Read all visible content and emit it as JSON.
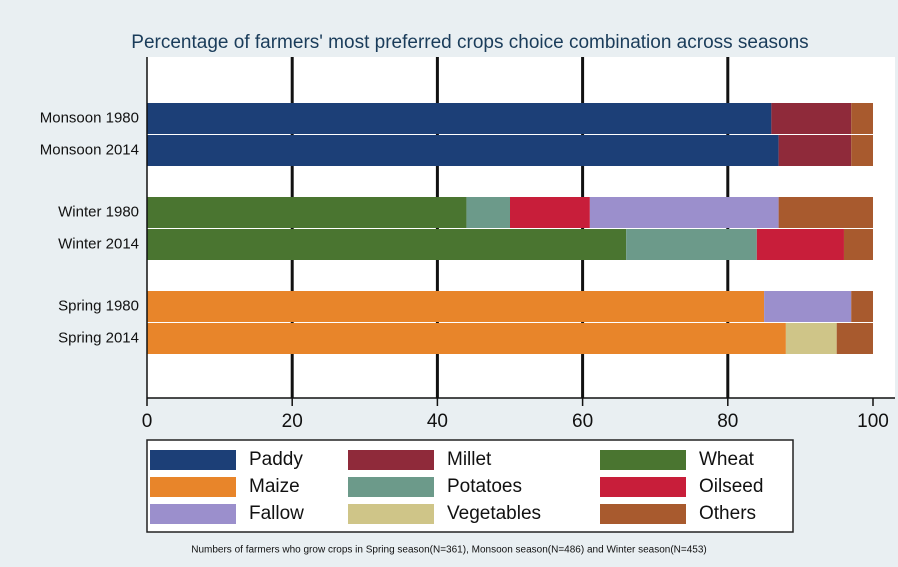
{
  "chart_data": {
    "type": "stacked-barh",
    "title": "Percentage of farmers' most preferred crops choice combination across seasons",
    "footnote": "Numbers of farmers who grow crops in Spring season(N=361), Monsoon season(N=486) and Winter season(N=453)",
    "categories": [
      "Monsoon 1980",
      "Monsoon 2014",
      "Winter  1980",
      "Winter  2014",
      "Spring 1980",
      "Spring 2014"
    ],
    "series": [
      {
        "name": "Paddy",
        "color": "#1c3f77",
        "values": [
          86,
          87,
          0,
          0,
          0,
          0
        ]
      },
      {
        "name": "Millet",
        "color": "#8f2a3a",
        "values": [
          11,
          10,
          0,
          0,
          0,
          0
        ]
      },
      {
        "name": "Wheat",
        "color": "#4a7530",
        "values": [
          0,
          0,
          44,
          66,
          0,
          0
        ]
      },
      {
        "name": "Maize",
        "color": "#e8852a",
        "values": [
          0,
          0,
          0,
          0,
          85,
          88
        ]
      },
      {
        "name": "Potatoes",
        "color": "#6c9a8a",
        "values": [
          0,
          0,
          6,
          18,
          0,
          0
        ]
      },
      {
        "name": "Oilseed",
        "color": "#c81e3a",
        "values": [
          0,
          0,
          11,
          12,
          0,
          0
        ]
      },
      {
        "name": "Fallow",
        "color": "#9b8fcc",
        "values": [
          0,
          0,
          26,
          0,
          12,
          0
        ]
      },
      {
        "name": "Vegetables",
        "color": "#cfc588",
        "values": [
          0,
          0,
          0,
          0,
          0,
          7
        ]
      },
      {
        "name": "Others",
        "color": "#a85a2e",
        "values": [
          3,
          3,
          13,
          4,
          3,
          5
        ]
      }
    ],
    "xlim": [
      0,
      100
    ],
    "xticks": [
      0,
      20,
      40,
      60,
      80,
      100
    ],
    "grid": true
  }
}
